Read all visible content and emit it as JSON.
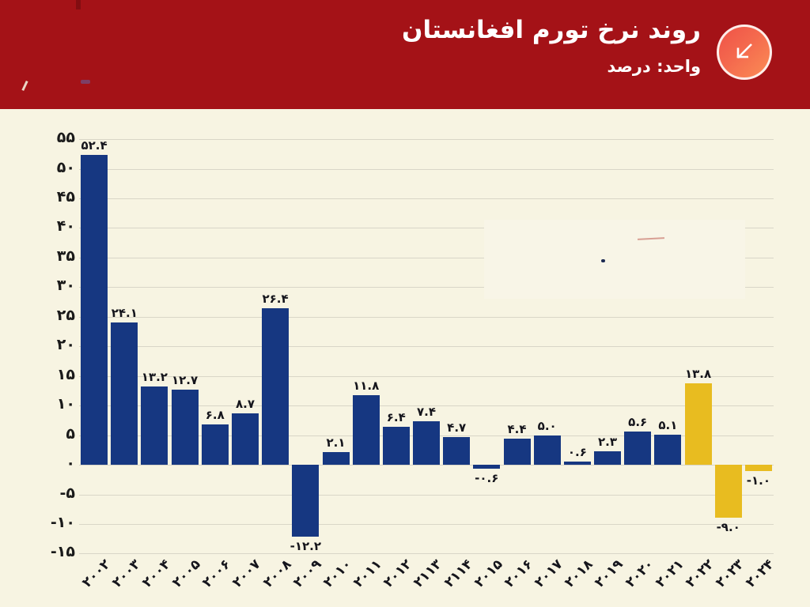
{
  "header": {
    "title": "روند نرخ تورم افغانستان",
    "subtitle": "واحد: درصد",
    "background": "#a41217",
    "icon": "trend-down-arrow-icon"
  },
  "chart_data": {
    "type": "bar",
    "title": "روند نرخ تورم افغانستان",
    "unit_label": "واحد: درصد",
    "ylim": [
      -15,
      55
    ],
    "ytick_step": 5,
    "grid": true,
    "legend": "none",
    "colors": {
      "bar_primary": "#163781",
      "bar_highlight": "#e8bc20",
      "grid": "#d9d6c7",
      "background": "#f7f4e2",
      "label_text": "#1a1a1a",
      "header_red": "#a41217",
      "icon_gradient": [
        "#ef5247",
        "#fb8d55"
      ]
    },
    "yticks": [
      {
        "value": 55,
        "label": "۵۵"
      },
      {
        "value": 50,
        "label": "۵۰"
      },
      {
        "value": 45,
        "label": "۴۵"
      },
      {
        "value": 40,
        "label": "۴۰"
      },
      {
        "value": 35,
        "label": "۳۵"
      },
      {
        "value": 30,
        "label": "۳۰"
      },
      {
        "value": 25,
        "label": "۲۵"
      },
      {
        "value": 20,
        "label": "۲۰"
      },
      {
        "value": 15,
        "label": "۱۵"
      },
      {
        "value": 10,
        "label": "۱۰"
      },
      {
        "value": 5,
        "label": "۵"
      },
      {
        "value": 0,
        "label": "۰"
      },
      {
        "value": -5,
        "label": "-۵"
      },
      {
        "value": -10,
        "label": "-۱۰"
      },
      {
        "value": -15,
        "label": "-۱۵"
      }
    ],
    "bars": [
      {
        "category": "۲۰۰۲",
        "value": 52.4,
        "value_label": "۵۲.۴",
        "color": "#163781"
      },
      {
        "category": "۲۰۰۳",
        "value": 24.1,
        "value_label": "۲۴.۱",
        "color": "#163781"
      },
      {
        "category": "۲۰۰۴",
        "value": 13.2,
        "value_label": "۱۳.۲",
        "color": "#163781"
      },
      {
        "category": "۲۰۰۵",
        "value": 12.7,
        "value_label": "۱۲.۷",
        "color": "#163781"
      },
      {
        "category": "۲۰۰۶",
        "value": 6.8,
        "value_label": "۶.۸",
        "color": "#163781"
      },
      {
        "category": "۲۰۰۷",
        "value": 8.7,
        "value_label": "۸.۷",
        "color": "#163781"
      },
      {
        "category": "۲۰۰۸",
        "value": 26.4,
        "value_label": "۲۶.۴",
        "color": "#163781"
      },
      {
        "category": "۲۰۰۹",
        "value": -12.2,
        "value_label": "-۱۲.۲",
        "color": "#163781"
      },
      {
        "category": "۲۰۱۰",
        "value": 2.1,
        "value_label": "۲.۱",
        "color": "#163781"
      },
      {
        "category": "۲۰۱۱",
        "value": 11.8,
        "value_label": "۱۱.۸",
        "color": "#163781"
      },
      {
        "category": "۲۰۱۲",
        "value": 6.4,
        "value_label": "۶.۴",
        "color": "#163781"
      },
      {
        "category": "۲۱۱۳",
        "value": 7.4,
        "value_label": "۷.۴",
        "color": "#163781"
      },
      {
        "category": "۲۱۱۴",
        "value": 4.7,
        "value_label": "۴.۷",
        "color": "#163781"
      },
      {
        "category": "۲۰۱۵",
        "value": -0.6,
        "value_label": "-۰.۶",
        "color": "#163781"
      },
      {
        "category": "۲۰۱۶",
        "value": 4.4,
        "value_label": "۴.۴",
        "color": "#163781"
      },
      {
        "category": "۲۰۱۷",
        "value": 5.0,
        "value_label": "۵.۰",
        "color": "#163781"
      },
      {
        "category": "۲۰۱۸",
        "value": 0.6,
        "value_label": "۰.۶",
        "color": "#163781"
      },
      {
        "category": "۲۰۱۹",
        "value": 2.3,
        "value_label": "۲.۳",
        "color": "#163781"
      },
      {
        "category": "۲۰۲۰",
        "value": 5.6,
        "value_label": "۵.۶",
        "color": "#163781"
      },
      {
        "category": "۲۰۲۱",
        "value": 5.1,
        "value_label": "۵.۱",
        "color": "#163781"
      },
      {
        "category": "۲۰۲۲",
        "value": 13.8,
        "value_label": "۱۳.۸",
        "color": "#e8bc20"
      },
      {
        "category": "۲۰۲۳",
        "value": -9.0,
        "value_label": "-۹.۰",
        "color": "#e8bc20"
      },
      {
        "category": "۲۰۲۴",
        "value": -1.0,
        "value_label": "-۱.۰",
        "color": "#e8bc20"
      }
    ]
  }
}
